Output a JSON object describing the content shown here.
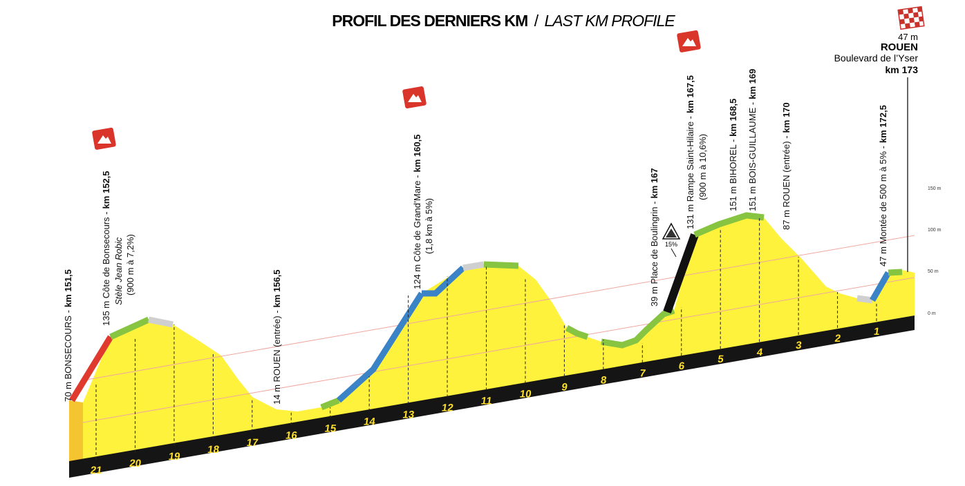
{
  "title": {
    "main": "PROFIL DES DERNIERS KM",
    "separator": "/",
    "sub": "LAST KM PROFILE"
  },
  "finish": {
    "altitude": "47 m",
    "name": "ROUEN",
    "place": "Boulevard de l’Yser",
    "km": "km 173"
  },
  "scale": [
    "150 m",
    "100 m",
    "50 m",
    "0 m"
  ],
  "gradient_badge": "15%",
  "km_markers": [
    "21",
    "20",
    "19",
    "18",
    "17",
    "16",
    "15",
    "14",
    "13",
    "12",
    "11",
    "10",
    "9",
    "8",
    "7",
    "6",
    "5",
    "4",
    "3",
    "2",
    "1"
  ],
  "annotations": [
    {
      "label": "70 m BONSECOURS -",
      "km": "km 151,5",
      "notes": []
    },
    {
      "label": "135 m Côte de Bonsecours -",
      "km": "km 152,5",
      "notes": [
        "Stèle Jean Robic",
        "(900 m à 7,2%)"
      ]
    },
    {
      "label": "14 m ROUEN (entrée) -",
      "km": "km 156,5",
      "notes": []
    },
    {
      "label": "124 m Côte de Grand’Mare -",
      "km": "km 160,5",
      "notes": [
        "(1,8 km à 5%)"
      ]
    },
    {
      "label": "39 m Place de Boulingrin -",
      "km": "km 167",
      "notes": []
    },
    {
      "label": "131 m Rampe Saint-Hilaire -",
      "km": "km 167,5",
      "notes": [
        "(900 m à 10,6%)"
      ]
    },
    {
      "label": "151 m BIHOREL -",
      "km": "km 168,5",
      "notes": []
    },
    {
      "label": "151 m BOIS-GUILLAUME -",
      "km": "km 169",
      "notes": []
    },
    {
      "label": "87 m ROUEN (entrée) -",
      "km": "km 170",
      "notes": []
    },
    {
      "label": "47 m Montée de 500 m à 5% -",
      "km": "km 172,5",
      "notes": []
    }
  ]
}
